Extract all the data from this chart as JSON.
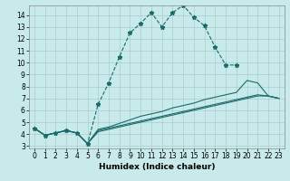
{
  "title": "",
  "xlabel": "Humidex (Indice chaleur)",
  "bg_color": "#c8eaea",
  "grid_color": "#aacccc",
  "line_color": "#1a6b6b",
  "xlim": [
    -0.5,
    23.5
  ],
  "ylim": [
    2.8,
    14.8
  ],
  "xticks": [
    0,
    1,
    2,
    3,
    4,
    5,
    6,
    7,
    8,
    9,
    10,
    11,
    12,
    13,
    14,
    15,
    16,
    17,
    18,
    19,
    20,
    21,
    22,
    23
  ],
  "yticks": [
    3,
    4,
    5,
    6,
    7,
    8,
    9,
    10,
    11,
    12,
    13,
    14
  ],
  "line_dotted": {
    "x": [
      0,
      1,
      2,
      3,
      4,
      5,
      6,
      7,
      8,
      9,
      10,
      11,
      12,
      13,
      14,
      15,
      16,
      17,
      18,
      19
    ],
    "y": [
      4.5,
      3.9,
      4.1,
      4.3,
      4.1,
      3.2,
      6.5,
      8.3,
      10.5,
      12.5,
      13.3,
      14.2,
      13.0,
      14.2,
      14.8,
      13.8,
      13.1,
      11.3,
      9.8,
      9.8
    ]
  },
  "line_solid_1": {
    "x": [
      0,
      1,
      2,
      3,
      4,
      5,
      6,
      7,
      8,
      9,
      10,
      11,
      12,
      13,
      14,
      15,
      16,
      17,
      18,
      19,
      20,
      21,
      22,
      23
    ],
    "y": [
      4.5,
      3.9,
      4.1,
      4.3,
      4.1,
      3.2,
      4.4,
      4.6,
      4.9,
      5.2,
      5.5,
      5.7,
      5.9,
      6.2,
      6.4,
      6.6,
      6.9,
      7.1,
      7.3,
      7.5,
      8.5,
      8.3,
      7.2,
      7.0
    ]
  },
  "line_solid_2": {
    "x": [
      0,
      1,
      2,
      3,
      4,
      5,
      6,
      7,
      8,
      9,
      10,
      11,
      12,
      13,
      14,
      15,
      16,
      17,
      18,
      19,
      20,
      21,
      22,
      23
    ],
    "y": [
      4.5,
      3.9,
      4.1,
      4.3,
      4.1,
      3.2,
      4.3,
      4.5,
      4.7,
      4.9,
      5.1,
      5.3,
      5.5,
      5.7,
      5.9,
      6.1,
      6.3,
      6.5,
      6.7,
      6.9,
      7.1,
      7.3,
      7.2,
      7.0
    ]
  },
  "line_solid_3": {
    "x": [
      0,
      1,
      2,
      3,
      4,
      5,
      6,
      7,
      8,
      9,
      10,
      11,
      12,
      13,
      14,
      15,
      16,
      17,
      18,
      19,
      20,
      21,
      22,
      23
    ],
    "y": [
      4.5,
      3.9,
      4.1,
      4.3,
      4.1,
      3.2,
      4.2,
      4.4,
      4.6,
      4.8,
      5.0,
      5.2,
      5.4,
      5.6,
      5.8,
      6.0,
      6.2,
      6.4,
      6.6,
      6.8,
      7.0,
      7.2,
      7.2,
      7.0
    ]
  }
}
